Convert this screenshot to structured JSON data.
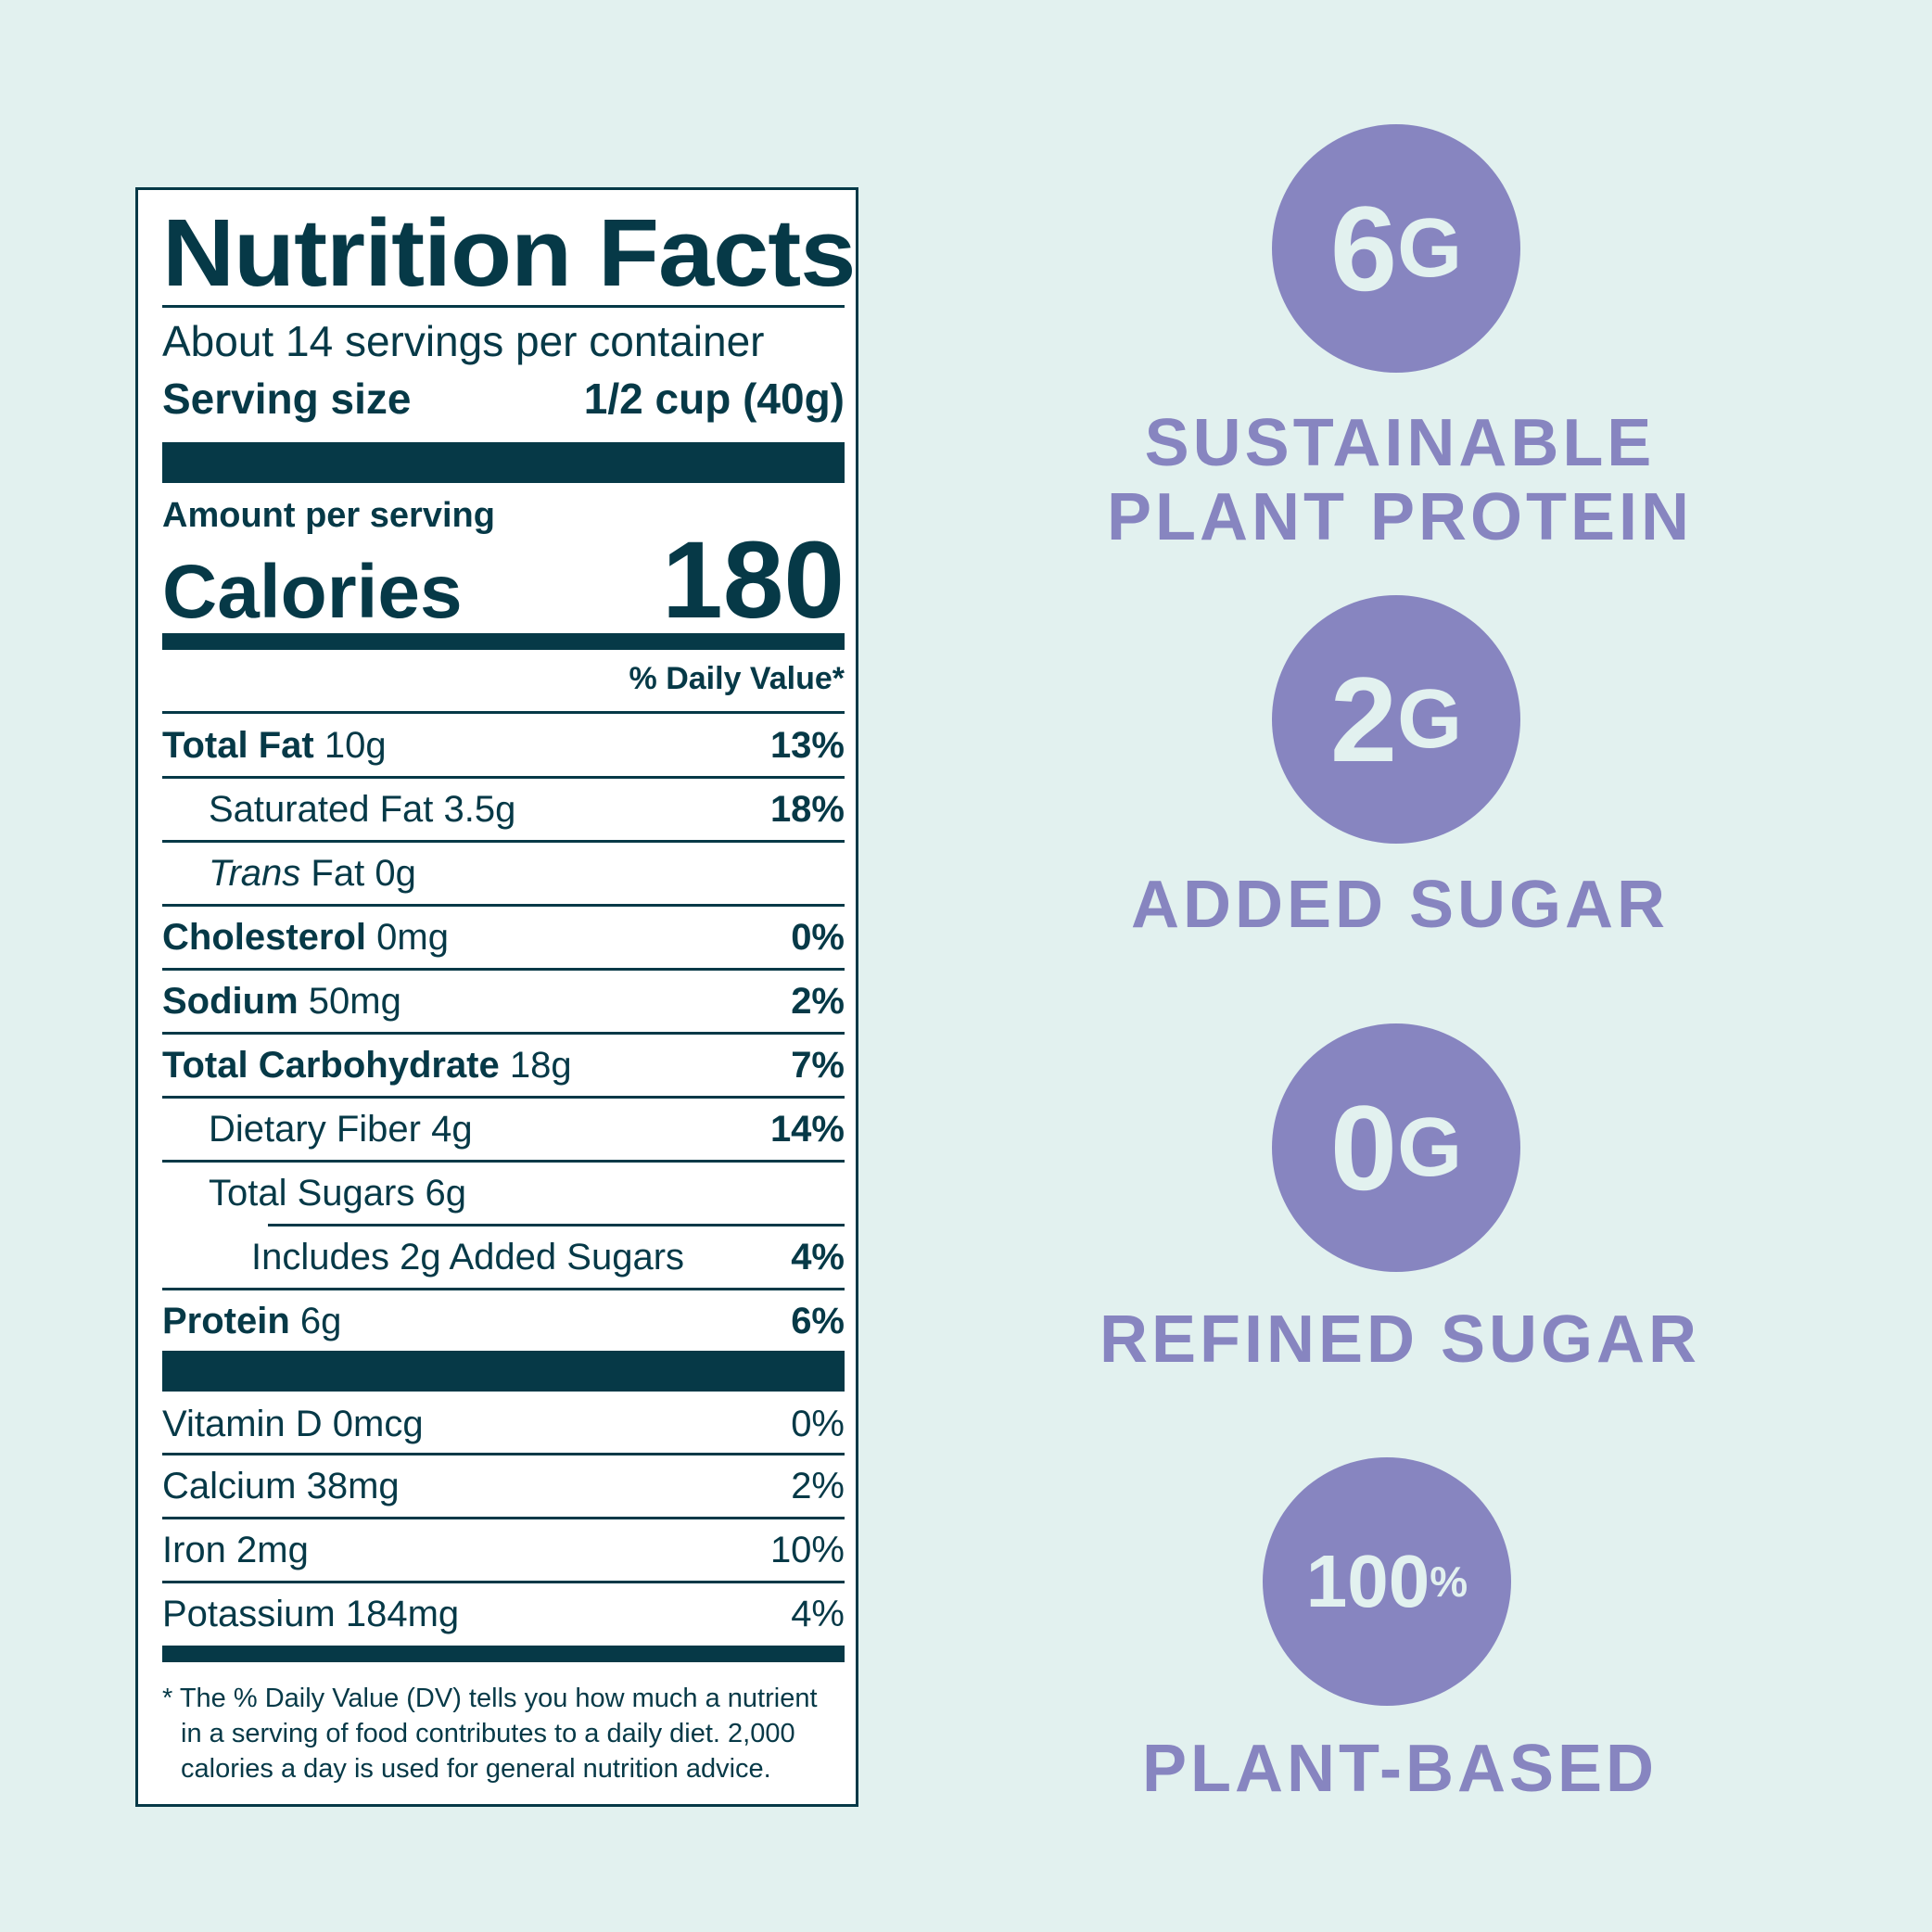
{
  "label": {
    "title": "Nutrition Facts",
    "servings": "About 14 servings per container",
    "serving_size_label": "Serving size",
    "serving_size_value": "1/2 cup (40g)",
    "amount_per_serving": "Amount per serving",
    "calories_label": "Calories",
    "calories_value": "180",
    "dv_header": "% Daily Value*",
    "nutrients": [
      {
        "name": "Total Fat",
        "amount": "10g",
        "pct": "13%"
      },
      {
        "name": "Saturated Fat",
        "amount": "3.5g",
        "pct": "18%"
      },
      {
        "name_italic": "Trans",
        "name": "Fat",
        "amount": "0g",
        "pct": ""
      },
      {
        "name": "Cholesterol",
        "amount": "0mg",
        "pct": "0%"
      },
      {
        "name": "Sodium",
        "amount": "50mg",
        "pct": "2%"
      },
      {
        "name": "Total Carbohydrate",
        "amount": "18g",
        "pct": "7%"
      },
      {
        "name": "Dietary Fiber",
        "amount": "4g",
        "pct": "14%"
      },
      {
        "name": "Total Sugars",
        "amount": "6g",
        "pct": ""
      },
      {
        "name": "Includes 2g Added Sugars",
        "amount": "",
        "pct": "4%"
      },
      {
        "name": "Protein",
        "amount": "6g",
        "pct": "6%"
      }
    ],
    "vitamins": [
      {
        "text": "Vitamin D 0mcg",
        "pct": "0%"
      },
      {
        "text": "Calcium 38mg",
        "pct": "2%"
      },
      {
        "text": "Iron 2mg",
        "pct": "10%"
      },
      {
        "text": "Potassium 184mg",
        "pct": "4%"
      }
    ],
    "footnote": "* The % Daily Value (DV) tells you how much a nutrient in a serving of food contributes to a daily diet. 2,000 calories a day is used for general nutrition advice."
  },
  "highlights": [
    {
      "value": "6",
      "unit": "G",
      "caption_line1": "SUSTAINABLE",
      "caption_line2": "PLANT PROTEIN"
    },
    {
      "value": "2",
      "unit": "G",
      "caption_line1": "ADDED SUGAR"
    },
    {
      "value": "0",
      "unit": "G",
      "caption_line1": "REFINED SUGAR"
    },
    {
      "value": "100",
      "unit": "%",
      "caption_line1": "PLANT-BASED"
    }
  ],
  "colors": {
    "background": "#e2f1ef",
    "label_ink": "#063947",
    "accent_purple": "#8785c0"
  }
}
